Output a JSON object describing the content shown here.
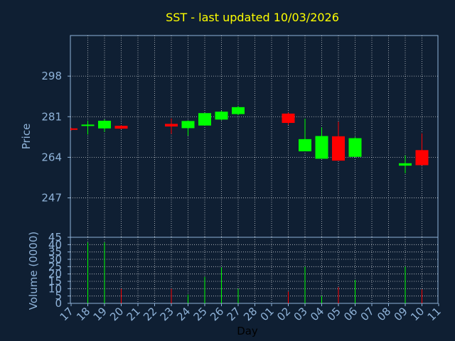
{
  "chart_data": [
    {
      "type": "candlestick",
      "title": "SST - last updated 10/03/2026",
      "ylabel": "Price",
      "ylim": [
        230.5,
        315
      ],
      "yticks": [
        298,
        281,
        264,
        247
      ],
      "grid": true,
      "colors": {
        "up": "#00ff00",
        "down": "#ff0000",
        "grid": "#ffffff",
        "axis": "#8fb3d9",
        "title": "#ffff00",
        "background": "#0f1f33",
        "label": "#8fb3d9"
      },
      "candles": [
        {
          "day": "17",
          "open": 276.1,
          "high": 276.4,
          "low": 275.2,
          "close": 275.5
        },
        {
          "day": "18",
          "open": 277.3,
          "high": 279.4,
          "low": 273.5,
          "close": 277.7
        },
        {
          "day": "19",
          "open": 276.1,
          "high": 279.9,
          "low": 274.6,
          "close": 279.3
        },
        {
          "day": "20",
          "open": 277.2,
          "high": 277.5,
          "low": 275.8,
          "close": 276.0
        },
        {
          "day": "23",
          "open": 278.0,
          "high": 280.3,
          "low": 273.8,
          "close": 276.9
        },
        {
          "day": "24",
          "open": 276.2,
          "high": 279.5,
          "low": 273.1,
          "close": 279.2
        },
        {
          "day": "25",
          "open": 277.3,
          "high": 282.5,
          "low": 277.3,
          "close": 282.5
        },
        {
          "day": "26",
          "open": 279.8,
          "high": 283.5,
          "low": 279.5,
          "close": 283.1
        },
        {
          "day": "27",
          "open": 282.1,
          "high": 285.6,
          "low": 281.6,
          "close": 285.0
        },
        {
          "day": "02",
          "open": 282.3,
          "high": 282.7,
          "low": 277.5,
          "close": 278.4
        },
        {
          "day": "03",
          "open": 266.5,
          "high": 280.2,
          "low": 266.5,
          "close": 271.6
        },
        {
          "day": "04",
          "open": 263.4,
          "high": 276.5,
          "low": 263.4,
          "close": 272.9
        },
        {
          "day": "05",
          "open": 272.8,
          "high": 278.9,
          "low": 262.6,
          "close": 262.6
        },
        {
          "day": "06",
          "open": 264.2,
          "high": 272.5,
          "low": 264.2,
          "close": 272.0
        },
        {
          "day": "09",
          "open": 260.5,
          "high": 264.8,
          "low": 257.3,
          "close": 261.5
        },
        {
          "day": "10",
          "open": 267.0,
          "high": 274.0,
          "low": 260.5,
          "close": 260.7
        }
      ]
    },
    {
      "type": "bar",
      "ylabel": "Volume (0000)",
      "xlabel": "Day",
      "ylim": [
        0,
        45
      ],
      "yticks": [
        45,
        40,
        35,
        30,
        25,
        20,
        15,
        10,
        5,
        0
      ],
      "grid": true,
      "categories": [
        "17",
        "18",
        "19",
        "20",
        "21",
        "22",
        "23",
        "24",
        "25",
        "26",
        "27",
        "28",
        "01",
        "02",
        "03",
        "04",
        "05",
        "06",
        "07",
        "08",
        "09",
        "10",
        "11"
      ],
      "volumes": [
        {
          "day": "18",
          "value": 41.5,
          "direction": "up"
        },
        {
          "day": "19",
          "value": 41.5,
          "direction": "up"
        },
        {
          "day": "20",
          "value": 10.0,
          "direction": "down"
        },
        {
          "day": "23",
          "value": 10.0,
          "direction": "down"
        },
        {
          "day": "24",
          "value": 6.0,
          "direction": "up"
        },
        {
          "day": "25",
          "value": 18.0,
          "direction": "up"
        },
        {
          "day": "26",
          "value": 24.5,
          "direction": "up"
        },
        {
          "day": "27",
          "value": 10.0,
          "direction": "up"
        },
        {
          "day": "02",
          "value": 8.0,
          "direction": "down"
        },
        {
          "day": "03",
          "value": 25.0,
          "direction": "up"
        },
        {
          "day": "04",
          "value": 5.0,
          "direction": "up"
        },
        {
          "day": "05",
          "value": 11.0,
          "direction": "down"
        },
        {
          "day": "06",
          "value": 16.0,
          "direction": "up"
        },
        {
          "day": "09",
          "value": 25.0,
          "direction": "up"
        },
        {
          "day": "10",
          "value": 9.5,
          "direction": "down"
        }
      ]
    }
  ]
}
